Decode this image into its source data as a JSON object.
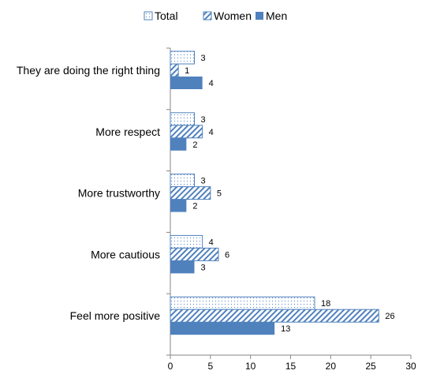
{
  "chart_data": {
    "type": "bar",
    "orientation": "horizontal",
    "categories": [
      "They are doing the right thing",
      "More respect",
      "More trustworthy",
      "More cautious",
      "Feel more positive"
    ],
    "series": [
      {
        "name": "Total",
        "values": [
          3,
          3,
          3,
          4,
          18
        ],
        "pattern": "dots",
        "color": "#4F81BD"
      },
      {
        "name": "Women",
        "values": [
          1,
          4,
          5,
          6,
          26
        ],
        "pattern": "diagonal-stripes",
        "color": "#4F81BD"
      },
      {
        "name": "Men",
        "values": [
          4,
          2,
          2,
          3,
          13
        ],
        "pattern": "solid",
        "color": "#4F81BD"
      }
    ],
    "xlim": [
      0,
      30
    ],
    "xticks": [
      0,
      5,
      10,
      15,
      20,
      25,
      30
    ],
    "data_labels": true,
    "grid": false,
    "legend_position": "top"
  }
}
